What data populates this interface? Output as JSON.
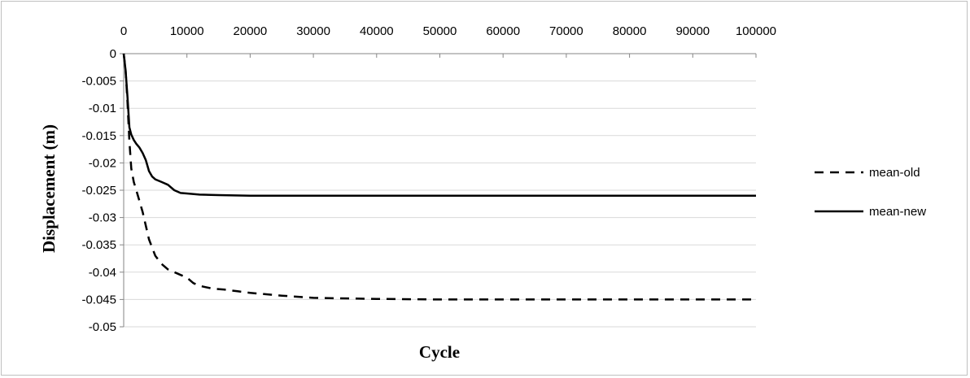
{
  "chart_data": {
    "type": "line",
    "title": "",
    "xlabel": "Cycle",
    "ylabel": "Displacement (m)",
    "xlim": [
      0,
      100000
    ],
    "ylim": [
      -0.05,
      0
    ],
    "x_ticks": [
      0,
      10000,
      20000,
      30000,
      40000,
      50000,
      60000,
      70000,
      80000,
      90000,
      100000
    ],
    "x_tick_labels": [
      "0",
      "10000",
      "20000",
      "30000",
      "40000",
      "50000",
      "60000",
      "70000",
      "80000",
      "90000",
      "100000"
    ],
    "y_ticks": [
      0,
      -0.005,
      -0.01,
      -0.015,
      -0.02,
      -0.025,
      -0.03,
      -0.035,
      -0.04,
      -0.045,
      -0.05
    ],
    "y_tick_labels": [
      "0",
      "-0.005",
      "-0.01",
      "-0.015",
      "-0.02",
      "-0.025",
      "-0.03",
      "-0.035",
      "-0.04",
      "-0.045",
      "-0.05"
    ],
    "x_axis_position": "top",
    "grid": true,
    "legend_position": "right",
    "series": [
      {
        "name": "mean-old",
        "style": "dashed",
        "color": "#000000",
        "x": [
          0,
          300,
          600,
          900,
          1200,
          1600,
          2000,
          2500,
          3000,
          3500,
          4000,
          4500,
          5000,
          6000,
          7000,
          8000,
          9000,
          10000,
          11000,
          12000,
          14000,
          16000,
          18000,
          20000,
          25000,
          30000,
          40000,
          50000,
          60000,
          70000,
          80000,
          90000,
          100000
        ],
        "y": [
          0,
          -0.003,
          -0.009,
          -0.016,
          -0.021,
          -0.0235,
          -0.025,
          -0.027,
          -0.029,
          -0.0315,
          -0.034,
          -0.0355,
          -0.037,
          -0.0385,
          -0.0395,
          -0.04,
          -0.0405,
          -0.041,
          -0.042,
          -0.0425,
          -0.043,
          -0.0432,
          -0.0435,
          -0.0438,
          -0.0443,
          -0.0447,
          -0.0449,
          -0.045,
          -0.045,
          -0.045,
          -0.045,
          -0.045,
          -0.045
        ]
      },
      {
        "name": "mean-new",
        "style": "solid",
        "color": "#000000",
        "x": [
          0,
          300,
          600,
          900,
          1200,
          1600,
          2000,
          2500,
          3000,
          3500,
          4000,
          4500,
          5000,
          6000,
          7000,
          8000,
          9000,
          10000,
          12000,
          15000,
          20000,
          30000,
          40000,
          50000,
          60000,
          70000,
          80000,
          90000,
          100000
        ],
        "y": [
          0,
          -0.003,
          -0.008,
          -0.0135,
          -0.0148,
          -0.0158,
          -0.0165,
          -0.0172,
          -0.0182,
          -0.0195,
          -0.0215,
          -0.0225,
          -0.023,
          -0.0235,
          -0.024,
          -0.025,
          -0.0255,
          -0.0256,
          -0.0258,
          -0.0259,
          -0.026,
          -0.026,
          -0.026,
          -0.026,
          -0.026,
          -0.026,
          -0.026,
          -0.026,
          -0.026
        ]
      }
    ]
  }
}
